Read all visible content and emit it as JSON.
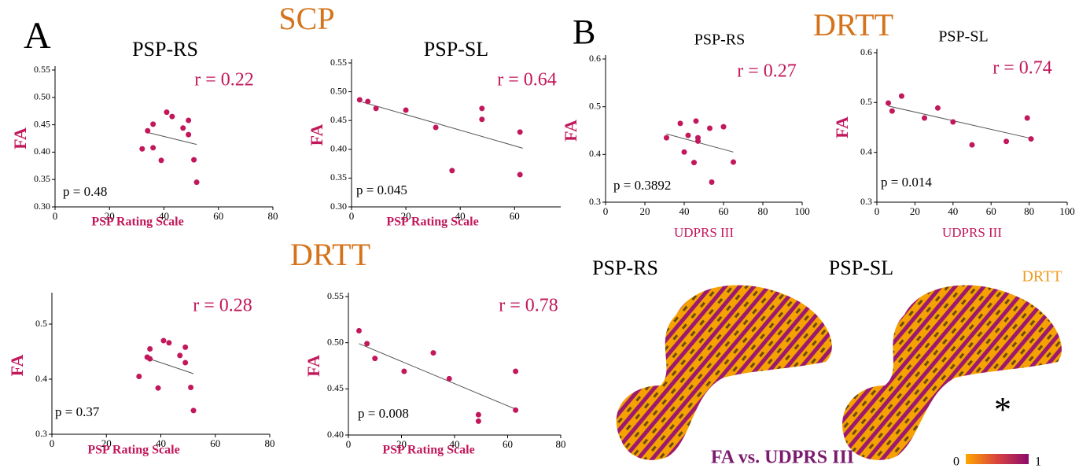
{
  "chart_data": [
    {
      "type": "scatter",
      "title": "PSP-RS",
      "xlabel": "PSP Rating Scale",
      "ylabel": "FA",
      "color": "#c2185b",
      "x": [
        32,
        34,
        36,
        36,
        39,
        41,
        43,
        47,
        49,
        49,
        51,
        52
      ],
      "values": [
        0.406,
        0.439,
        0.451,
        0.408,
        0.385,
        0.473,
        0.465,
        0.444,
        0.458,
        0.432,
        0.386,
        0.345
      ],
      "trend": {
        "x": [
          34,
          52
        ],
        "values": [
          0.436,
          0.414
        ]
      },
      "xlim": [
        0,
        80
      ],
      "xticks": [
        0,
        20,
        40,
        60,
        80
      ],
      "ylim": [
        0.3,
        0.55
      ],
      "yticks": [
        {
          "value": 0.3,
          "label": "0.30"
        },
        0.35,
        {
          "value": 0.4,
          "label": "0.40"
        },
        0.45,
        {
          "value": 0.5,
          "label": "0.50"
        },
        0.55
      ],
      "annotations": [
        "r = 0.22",
        "p = 0.48"
      ]
    },
    {
      "type": "scatter",
      "title": "PSP-SL",
      "xlabel": "PSP Rating Scale",
      "ylabel": "FA",
      "color": "#c2185b",
      "x": [
        3,
        6,
        9,
        20,
        31,
        37,
        48,
        48,
        62,
        62
      ],
      "values": [
        0.486,
        0.483,
        0.471,
        0.468,
        0.438,
        0.363,
        0.471,
        0.452,
        0.43,
        0.356
      ],
      "trend": {
        "x": [
          4,
          63
        ],
        "values": [
          0.482,
          0.402
        ]
      },
      "xlim": [
        0,
        77
      ],
      "xticks": [
        0,
        20,
        40,
        60
      ],
      "ylim": [
        0.3,
        0.55
      ],
      "yticks": [
        {
          "value": 0.3,
          "label": "0.30"
        },
        0.35,
        {
          "value": 0.4,
          "label": "0.40"
        },
        0.45,
        {
          "value": 0.5,
          "label": "0.50"
        },
        0.55
      ],
      "annotations": [
        "r = 0.64",
        "p = 0.045"
      ]
    },
    {
      "type": "scatter",
      "xlabel": "PSP Rating Scale",
      "ylabel": "FA",
      "color": "#c2185b",
      "x": [
        32,
        35,
        36,
        36,
        39,
        41,
        43,
        47,
        49,
        49,
        51,
        52
      ],
      "values": [
        0.405,
        0.44,
        0.437,
        0.455,
        0.384,
        0.47,
        0.466,
        0.443,
        0.458,
        0.43,
        0.385,
        0.343
      ],
      "trend": {
        "x": [
          34,
          52
        ],
        "values": [
          0.44,
          0.41
        ]
      },
      "xlim": [
        0,
        80
      ],
      "xticks": [
        0,
        20,
        40,
        60,
        80
      ],
      "ylim": [
        0.3,
        0.55
      ],
      "yticks": [
        0.3,
        0.4,
        0.5
      ],
      "annotations": [
        "r = 0.28",
        "p = 0.37"
      ]
    },
    {
      "type": "scatter",
      "xlabel": "PSP Rating Scale",
      "ylabel": "FA",
      "color": "#c2185b",
      "x": [
        4,
        7,
        10,
        21,
        32,
        38,
        49,
        49,
        63,
        63
      ],
      "values": [
        0.513,
        0.499,
        0.483,
        0.469,
        0.489,
        0.461,
        0.422,
        0.415,
        0.469,
        0.427
      ],
      "trend": {
        "x": [
          4,
          63
        ],
        "values": [
          0.499,
          0.428
        ]
      },
      "xlim": [
        0,
        80
      ],
      "xticks": [
        0,
        20,
        40,
        60,
        80
      ],
      "ylim": [
        0.4,
        0.55
      ],
      "yticks": [
        {
          "value": 0.4,
          "label": "0.40"
        },
        0.45,
        {
          "value": 0.5,
          "label": "0.50"
        },
        0.55
      ],
      "annotations": [
        "r = 0.78",
        "p = 0.008"
      ]
    },
    {
      "type": "scatter",
      "title": "PSP-RS",
      "xlabel": "UDPRS III",
      "ylabel": "FA",
      "color": "#c2185b",
      "x": [
        31,
        38,
        40,
        42,
        45,
        46,
        47,
        47,
        53,
        54,
        60,
        65
      ],
      "values": [
        0.435,
        0.465,
        0.405,
        0.44,
        0.383,
        0.47,
        0.435,
        0.428,
        0.455,
        0.342,
        0.458,
        0.384
      ],
      "trend": {
        "x": [
          31,
          65
        ],
        "values": [
          0.443,
          0.405
        ]
      },
      "xlim": [
        0,
        100
      ],
      "xticks": [
        0,
        20,
        40,
        60,
        80,
        100
      ],
      "ylim": [
        0.3,
        0.6
      ],
      "yticks": [
        0.3,
        0.4,
        0.5,
        0.6
      ],
      "annotations": [
        "r = 0.27",
        "p = 0.3892"
      ]
    },
    {
      "type": "scatter",
      "title": "PSP-SL",
      "xlabel": "UDPRS III",
      "ylabel": "FA",
      "color": "#c2185b",
      "x": [
        6,
        8,
        13,
        25,
        32,
        40,
        50,
        68,
        79,
        81
      ],
      "values": [
        0.499,
        0.483,
        0.513,
        0.469,
        0.489,
        0.461,
        0.415,
        0.422,
        0.469,
        0.427
      ],
      "trend": {
        "x": [
          6,
          81
        ],
        "values": [
          0.493,
          0.428
        ]
      },
      "xlim": [
        0,
        100
      ],
      "xticks": [
        0,
        20,
        40,
        60,
        80,
        100
      ],
      "ylim": [
        0.3,
        0.6
      ],
      "yticks": [
        0.3,
        0.4,
        0.5,
        0.6
      ],
      "annotations": [
        "r = 0.74",
        "p = 0.014"
      ]
    }
  ],
  "labels": {
    "panel_a": "A",
    "panel_b": "B",
    "scp": "SCP",
    "drtt_a": "DRTT",
    "drtt_b": "DRTT",
    "brain_rs": "PSP-RS",
    "brain_sl": "PSP-SL",
    "brain_tract": "DRTT",
    "asterisk": "*",
    "caption": "FA vs. UDPRS III"
  },
  "colorbar": {
    "ticks": [
      0,
      1
    ]
  }
}
